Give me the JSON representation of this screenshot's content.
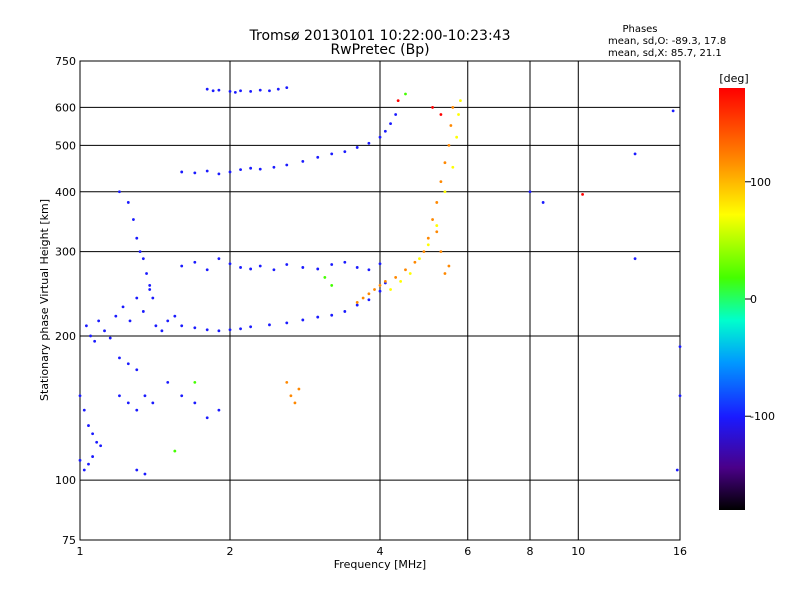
{
  "chart_data": {
    "type": "scatter",
    "title": "Tromsø 20130101 10:22:00-10:23:43",
    "subtitle": "RwPretec (Bp)",
    "stats": {
      "heading": "Phases",
      "line1": "mean, sd,O: -89.3, 17.8",
      "line2": "mean, sd,X:  85.7, 21.1"
    },
    "xlabel": "Frequency [MHz]",
    "ylabel": "Stationary phase Virtual Height [km]",
    "xscale": "log",
    "yscale": "log",
    "xlim": [
      1,
      16
    ],
    "ylim": [
      75,
      750
    ],
    "xticks": [
      1,
      2,
      4,
      6,
      8,
      10,
      16
    ],
    "xtick_labels": [
      "1",
      "2",
      "4",
      "6",
      "8",
      "10",
      "16"
    ],
    "yticks": [
      75,
      100,
      200,
      300,
      400,
      500,
      600,
      750
    ],
    "ytick_labels": [
      "75",
      "100",
      "200",
      "300",
      "400",
      "500",
      "600",
      "750"
    ],
    "grid": true,
    "colorbar": {
      "label": "[deg]",
      "range": [
        -180,
        180
      ],
      "ticks": [
        100,
        0,
        -100
      ],
      "tick_labels": [
        "100",
        "0",
        "-100"
      ]
    },
    "series": [
      {
        "phase": -110,
        "points": [
          [
            1.03,
            210
          ],
          [
            1.05,
            200
          ],
          [
            1.07,
            195
          ],
          [
            1.09,
            215
          ],
          [
            1.12,
            205
          ],
          [
            1.15,
            198
          ],
          [
            1.18,
            220
          ],
          [
            1.22,
            230
          ],
          [
            1.26,
            215
          ],
          [
            1.3,
            240
          ],
          [
            1.34,
            225
          ],
          [
            1.38,
            250
          ],
          [
            1.42,
            210
          ],
          [
            1.46,
            205
          ],
          [
            1.5,
            215
          ],
          [
            1.55,
            220
          ],
          [
            1.6,
            210
          ],
          [
            1.7,
            208
          ],
          [
            1.8,
            206
          ],
          [
            1.9,
            205
          ],
          [
            2.0,
            206
          ],
          [
            2.1,
            207
          ],
          [
            2.2,
            209
          ],
          [
            2.4,
            211
          ],
          [
            2.6,
            213
          ],
          [
            2.8,
            216
          ],
          [
            3.0,
            219
          ],
          [
            3.2,
            221
          ],
          [
            3.4,
            225
          ],
          [
            3.6,
            232
          ],
          [
            3.8,
            238
          ],
          [
            4.0,
            248
          ],
          [
            4.1,
            258
          ]
        ]
      },
      {
        "phase": -100,
        "points": [
          [
            1.6,
            280
          ],
          [
            1.7,
            285
          ],
          [
            1.8,
            275
          ],
          [
            1.9,
            290
          ],
          [
            2.0,
            283
          ],
          [
            2.1,
            278
          ],
          [
            2.2,
            276
          ],
          [
            2.3,
            280
          ],
          [
            2.45,
            275
          ],
          [
            2.6,
            282
          ],
          [
            2.8,
            278
          ],
          [
            3.0,
            276
          ],
          [
            3.2,
            282
          ],
          [
            3.4,
            285
          ],
          [
            3.6,
            278
          ],
          [
            3.8,
            275
          ],
          [
            4.0,
            283
          ]
        ]
      },
      {
        "phase": -105,
        "points": [
          [
            1.6,
            440
          ],
          [
            1.7,
            438
          ],
          [
            1.8,
            442
          ],
          [
            1.9,
            436
          ],
          [
            2.0,
            440
          ],
          [
            2.1,
            445
          ],
          [
            2.2,
            448
          ],
          [
            2.3,
            446
          ],
          [
            2.45,
            450
          ],
          [
            2.6,
            455
          ],
          [
            2.8,
            463
          ],
          [
            3.0,
            472
          ],
          [
            3.2,
            480
          ],
          [
            3.4,
            485
          ],
          [
            3.6,
            495
          ],
          [
            3.8,
            505
          ],
          [
            4.0,
            520
          ],
          [
            4.1,
            535
          ],
          [
            4.2,
            555
          ],
          [
            4.3,
            580
          ]
        ]
      },
      {
        "phase": -90,
        "points": [
          [
            1.8,
            655
          ],
          [
            1.85,
            650
          ],
          [
            1.9,
            652
          ],
          [
            2.0,
            648
          ],
          [
            2.05,
            645
          ],
          [
            2.1,
            650
          ],
          [
            2.2,
            648
          ],
          [
            2.3,
            652
          ],
          [
            2.4,
            650
          ],
          [
            2.5,
            655
          ],
          [
            2.6,
            660
          ]
        ]
      },
      {
        "phase": -80,
        "points": [
          [
            1.2,
            400
          ],
          [
            1.25,
            380
          ],
          [
            1.28,
            350
          ],
          [
            1.3,
            320
          ],
          [
            1.32,
            300
          ],
          [
            1.34,
            290
          ],
          [
            1.36,
            270
          ],
          [
            1.38,
            255
          ],
          [
            1.4,
            240
          ],
          [
            1.2,
            180
          ],
          [
            1.25,
            175
          ],
          [
            1.3,
            170
          ],
          [
            1.2,
            150
          ],
          [
            1.25,
            145
          ],
          [
            1.3,
            140
          ],
          [
            1.35,
            150
          ],
          [
            1.4,
            145
          ]
        ]
      },
      {
        "phase": -95,
        "points": [
          [
            1.0,
            150
          ],
          [
            1.02,
            140
          ],
          [
            1.04,
            130
          ],
          [
            1.06,
            125
          ],
          [
            1.08,
            120
          ],
          [
            1.0,
            110
          ],
          [
            1.02,
            105
          ],
          [
            1.04,
            108
          ],
          [
            1.06,
            112
          ],
          [
            1.1,
            118
          ],
          [
            1.3,
            105
          ],
          [
            1.35,
            103
          ],
          [
            1.5,
            160
          ],
          [
            1.6,
            150
          ],
          [
            1.7,
            145
          ],
          [
            1.8,
            135
          ],
          [
            1.9,
            140
          ]
        ]
      },
      {
        "phase": 100,
        "points": [
          [
            3.6,
            235
          ],
          [
            3.7,
            240
          ],
          [
            3.8,
            245
          ],
          [
            3.9,
            250
          ],
          [
            4.0,
            255
          ],
          [
            4.1,
            260
          ],
          [
            4.3,
            265
          ],
          [
            4.5,
            275
          ],
          [
            4.7,
            285
          ],
          [
            4.9,
            300
          ],
          [
            5.0,
            320
          ],
          [
            5.1,
            350
          ],
          [
            5.2,
            380
          ],
          [
            5.3,
            420
          ],
          [
            5.4,
            460
          ],
          [
            5.5,
            500
          ],
          [
            5.55,
            550
          ],
          [
            5.6,
            600
          ],
          [
            5.5,
            280
          ],
          [
            5.4,
            270
          ],
          [
            5.3,
            300
          ],
          [
            5.2,
            330
          ],
          [
            2.6,
            160
          ],
          [
            2.65,
            150
          ],
          [
            2.7,
            145
          ],
          [
            2.75,
            155
          ]
        ]
      },
      {
        "phase": 60,
        "points": [
          [
            4.2,
            250
          ],
          [
            4.4,
            260
          ],
          [
            4.6,
            270
          ],
          [
            4.8,
            290
          ],
          [
            5.0,
            310
          ],
          [
            5.2,
            340
          ],
          [
            5.4,
            400
          ],
          [
            5.6,
            450
          ],
          [
            5.7,
            520
          ],
          [
            5.75,
            580
          ],
          [
            5.8,
            620
          ]
        ]
      },
      {
        "phase": 20,
        "points": [
          [
            1.7,
            160
          ],
          [
            3.1,
            265
          ],
          [
            3.2,
            255
          ],
          [
            4.5,
            640
          ],
          [
            1.55,
            115
          ]
        ]
      },
      {
        "phase": 170,
        "points": [
          [
            10.2,
            395
          ],
          [
            4.35,
            620
          ],
          [
            5.1,
            600
          ],
          [
            5.3,
            580
          ]
        ]
      },
      {
        "phase": -85,
        "points": [
          [
            8.0,
            400
          ],
          [
            8.5,
            380
          ],
          [
            13.0,
            480
          ],
          [
            13.0,
            290
          ],
          [
            15.5,
            590
          ],
          [
            16.0,
            190
          ],
          [
            16.0,
            150
          ],
          [
            15.8,
            105
          ]
        ]
      }
    ]
  }
}
